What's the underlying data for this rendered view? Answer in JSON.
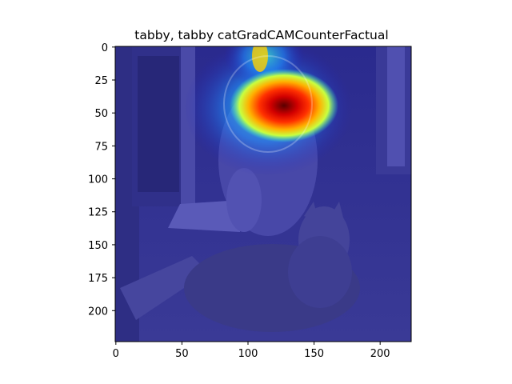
{
  "figure": {
    "title": "tabby, tabby catGradCAMCounterFactual",
    "image_description_name": "gradcam-overlay-image",
    "colors": {
      "frame": "#000000",
      "overlay_base": "#202080",
      "heat_hot": "#ff0000",
      "heat_mid": "#ffff00",
      "heat_cool": "#00ffff"
    }
  },
  "axes": {
    "x_ticks": [
      {
        "value": 0,
        "label": "0"
      },
      {
        "value": 50,
        "label": "50"
      },
      {
        "value": 100,
        "label": "100"
      },
      {
        "value": 150,
        "label": "150"
      },
      {
        "value": 200,
        "label": "200"
      }
    ],
    "y_ticks": [
      {
        "value": 0,
        "label": "0"
      },
      {
        "value": 25,
        "label": "25"
      },
      {
        "value": 50,
        "label": "50"
      },
      {
        "value": 75,
        "label": "75"
      },
      {
        "value": 100,
        "label": "100"
      },
      {
        "value": 125,
        "label": "125"
      },
      {
        "value": 150,
        "label": "150"
      },
      {
        "value": 175,
        "label": "175"
      },
      {
        "value": 200,
        "label": "200"
      }
    ],
    "x_range": [
      -0.5,
      223.5
    ],
    "y_range": [
      223.5,
      -0.5
    ]
  }
}
